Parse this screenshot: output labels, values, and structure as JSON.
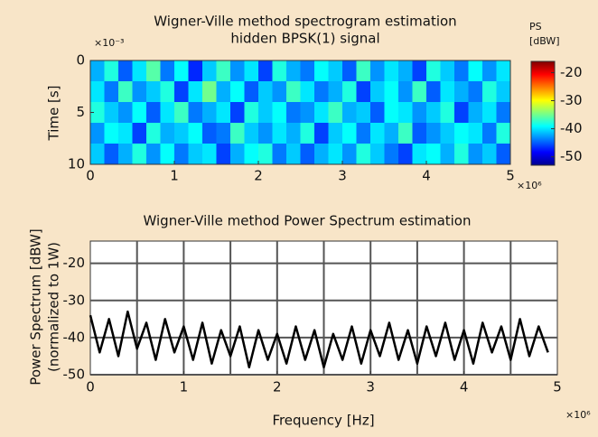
{
  "chart_data": [
    {
      "type": "heatmap",
      "title": "Wigner-Ville method spectrogram estimation",
      "subtitle": "hidden BPSK(1) signal",
      "ylabel": "Time [s]",
      "y_multiplier": "×10⁻³",
      "x_multiplier": "×10⁶",
      "xlim": [
        0,
        5
      ],
      "xticks": [
        0,
        1,
        2,
        3,
        4,
        5
      ],
      "ylim": [
        10,
        0
      ],
      "yticks": [
        0,
        5,
        10
      ],
      "colorbar_title": [
        "PS",
        "[dBW]"
      ],
      "zlim": [
        -53,
        -16
      ],
      "zticks": [
        -20,
        -30,
        -40,
        -50
      ],
      "colormap": "jet",
      "z": [
        [
          -42,
          -38,
          -45,
          -40,
          -36,
          -44,
          -39,
          -47,
          -41,
          -37,
          -43,
          -40,
          -46,
          -38,
          -42,
          -44,
          -39,
          -41,
          -45,
          -37,
          -43,
          -40,
          -42,
          -46,
          -38,
          -41,
          -44,
          -39,
          -43,
          -40
        ],
        [
          -40,
          -44,
          -37,
          -43,
          -41,
          -38,
          -46,
          -40,
          -35,
          -42,
          -39,
          -45,
          -41,
          -43,
          -37,
          -40,
          -44,
          -42,
          -38,
          -46,
          -41,
          -39,
          -43,
          -37,
          -45,
          -40,
          -42,
          -44,
          -38,
          -41
        ],
        [
          -38,
          -41,
          -43,
          -39,
          -45,
          -40,
          -37,
          -44,
          -42,
          -40,
          -46,
          -38,
          -41,
          -39,
          -44,
          -43,
          -40,
          -37,
          -42,
          -41,
          -45,
          -39,
          -40,
          -43,
          -41,
          -38,
          -46,
          -42,
          -40,
          -44
        ],
        [
          -43,
          -39,
          -40,
          -46,
          -38,
          -42,
          -41,
          -39,
          -45,
          -44,
          -37,
          -41,
          -43,
          -40,
          -42,
          -38,
          -46,
          -41,
          -39,
          -44,
          -40,
          -42,
          -37,
          -45,
          -43,
          -41,
          -39,
          -40,
          -44,
          -38
        ],
        [
          -41,
          -45,
          -42,
          -38,
          -43,
          -39,
          -44,
          -41,
          -40,
          -46,
          -42,
          -39,
          -38,
          -44,
          -41,
          -45,
          -42,
          -40,
          -43,
          -38,
          -41,
          -44,
          -46,
          -40,
          -39,
          -42,
          -38,
          -43,
          -41,
          -45
        ]
      ]
    },
    {
      "type": "line",
      "title": "Wigner-Ville method Power Spectrum estimation",
      "xlabel": "Frequency [Hz]",
      "ylabel": [
        "Power Spectrum [dBW]",
        "(normalized to 1W)"
      ],
      "x_multiplier": "×10⁶",
      "xlim": [
        0,
        5
      ],
      "xticks": [
        0,
        1,
        2,
        3,
        4,
        5
      ],
      "x_gridlines": [
        0.5,
        1,
        1.5,
        2,
        2.5,
        3,
        3.5,
        4,
        4.5
      ],
      "ylim": [
        -50,
        -14
      ],
      "yticks": [
        -50,
        -40,
        -30,
        -20
      ],
      "grid": true,
      "color": "#000000",
      "x": [
        0,
        0.1,
        0.2,
        0.3,
        0.4,
        0.5,
        0.6,
        0.7,
        0.8,
        0.9,
        1,
        1.1,
        1.2,
        1.3,
        1.4,
        1.5,
        1.6,
        1.7,
        1.8,
        1.9,
        2,
        2.1,
        2.2,
        2.3,
        2.4,
        2.5,
        2.6,
        2.7,
        2.8,
        2.9,
        3,
        3.1,
        3.2,
        3.3,
        3.4,
        3.5,
        3.6,
        3.7,
        3.8,
        3.9,
        4,
        4.1,
        4.2,
        4.3,
        4.4,
        4.5,
        4.6,
        4.7,
        4.8,
        4.9
      ],
      "values": [
        -34,
        -44,
        -35,
        -45,
        -33,
        -43,
        -36,
        -46,
        -35,
        -44,
        -37,
        -46,
        -36,
        -47,
        -38,
        -45,
        -37,
        -48,
        -38,
        -46,
        -39,
        -47,
        -37,
        -46,
        -38,
        -48,
        -39,
        -46,
        -37,
        -47,
        -38,
        -45,
        -36,
        -46,
        -38,
        -47,
        -37,
        -45,
        -36,
        -46,
        -38,
        -47,
        -36,
        -44,
        -37,
        -46,
        -35,
        -45,
        -37,
        -44
      ]
    }
  ]
}
